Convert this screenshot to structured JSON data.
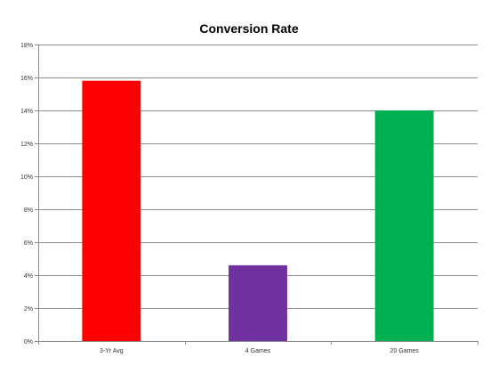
{
  "chart_data": {
    "type": "bar",
    "title": "Conversion Rate",
    "xlabel": "",
    "ylabel": "",
    "categories": [
      "3-Yr Avg",
      "4 Games",
      "20 Games"
    ],
    "values": [
      0.158,
      0.046,
      0.14
    ],
    "bar_colors": [
      "#ff0000",
      "#7030a0",
      "#00b050"
    ],
    "ylim": [
      0,
      0.18
    ],
    "yticks": [
      0,
      0.02,
      0.04,
      0.06,
      0.08,
      0.1,
      0.12,
      0.14,
      0.16,
      0.18
    ],
    "ytick_labels": [
      "0%",
      "2%",
      "4%",
      "6%",
      "8%",
      "10%",
      "12%",
      "14%",
      "16%",
      "18%"
    ],
    "grid": true,
    "legend": "none"
  }
}
